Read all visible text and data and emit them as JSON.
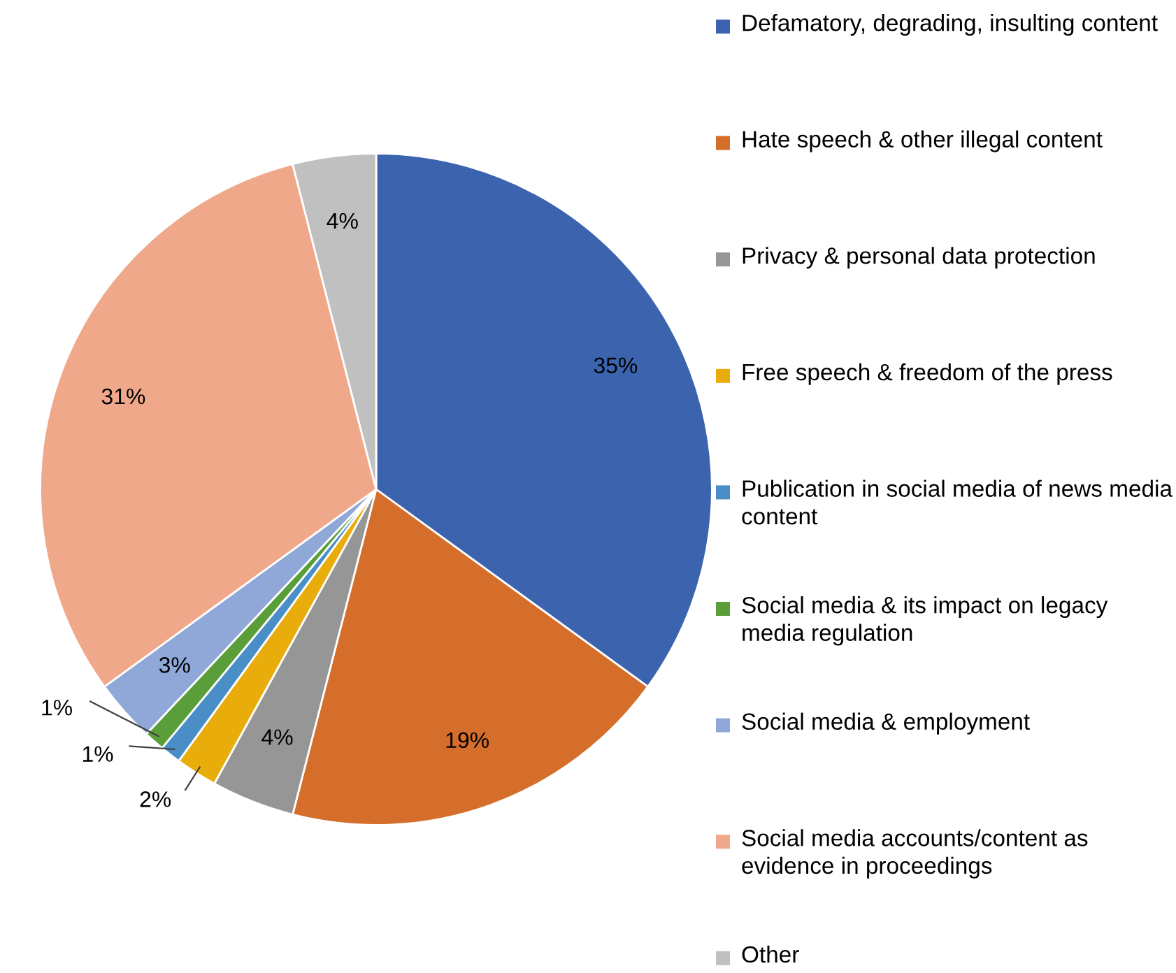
{
  "chart_data": {
    "type": "pie",
    "categories": [
      "Defamatory, degrading, insulting content",
      "Hate speech & other illegal content",
      "Privacy & personal data protection",
      "Free speech & freedom of the press",
      "Publication in social media of news media content",
      "Social media & its impact on legacy media regulation",
      "Social media & employment",
      "Social media accounts/content as evidence in proceedings",
      "Other"
    ],
    "values": [
      35,
      19,
      4,
      2,
      1,
      1,
      3,
      31,
      4
    ],
    "value_labels": [
      "35%",
      "19%",
      "4%",
      "2%",
      "1%",
      "1%",
      "3%",
      "31%",
      "4%"
    ],
    "colors": [
      "#3c64ae",
      "#d46e2a",
      "#969696",
      "#e8ad0b",
      "#4a8ec8",
      "#5a9e3a",
      "#8fa8d8",
      "#f0a88a",
      "#c0c0c0"
    ],
    "legend": "right"
  }
}
